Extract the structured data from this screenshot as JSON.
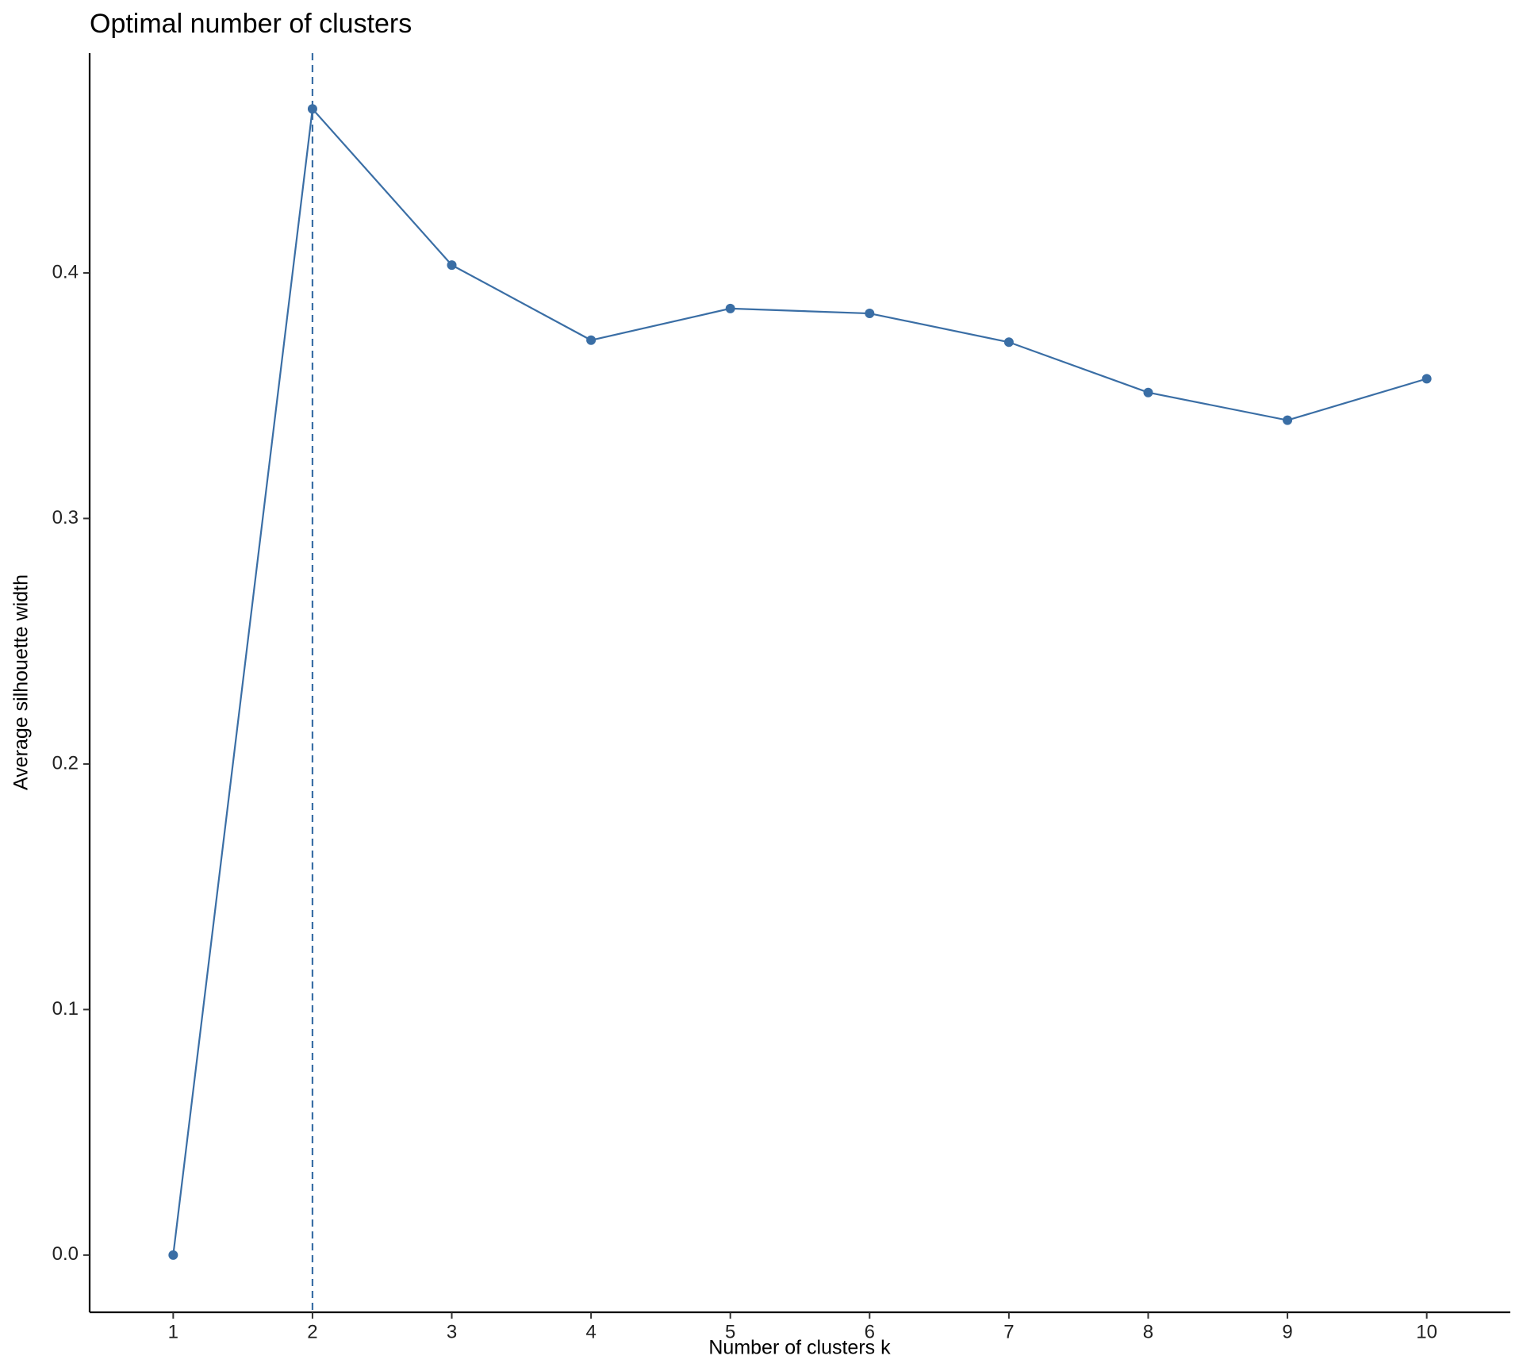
{
  "chart_data": {
    "type": "line",
    "title": "Optimal number of clusters",
    "x_label": "Number of clusters k",
    "y_label": "Average silhouette width",
    "x": [
      1,
      2,
      3,
      4,
      5,
      6,
      7,
      8,
      9,
      10
    ],
    "series": [
      {
        "color": "#3a6ea5",
        "values": [
          0,
          0.4668,
          0.4032,
          0.3726,
          0.3855,
          0.3835,
          0.3718,
          0.3513,
          0.34,
          0.3569
        ]
      }
    ],
    "vline": 2,
    "xlim": [
      0.4,
      10.6
    ],
    "xticks": [
      1,
      2,
      3,
      4,
      5,
      6,
      7,
      8,
      9,
      10
    ],
    "ylim": [
      -0.0233,
      0.4895
    ],
    "yticks": [
      {
        "value": 0,
        "label": "0.0"
      },
      0.1,
      0.2,
      0.3,
      0.4
    ],
    "grid": false
  }
}
